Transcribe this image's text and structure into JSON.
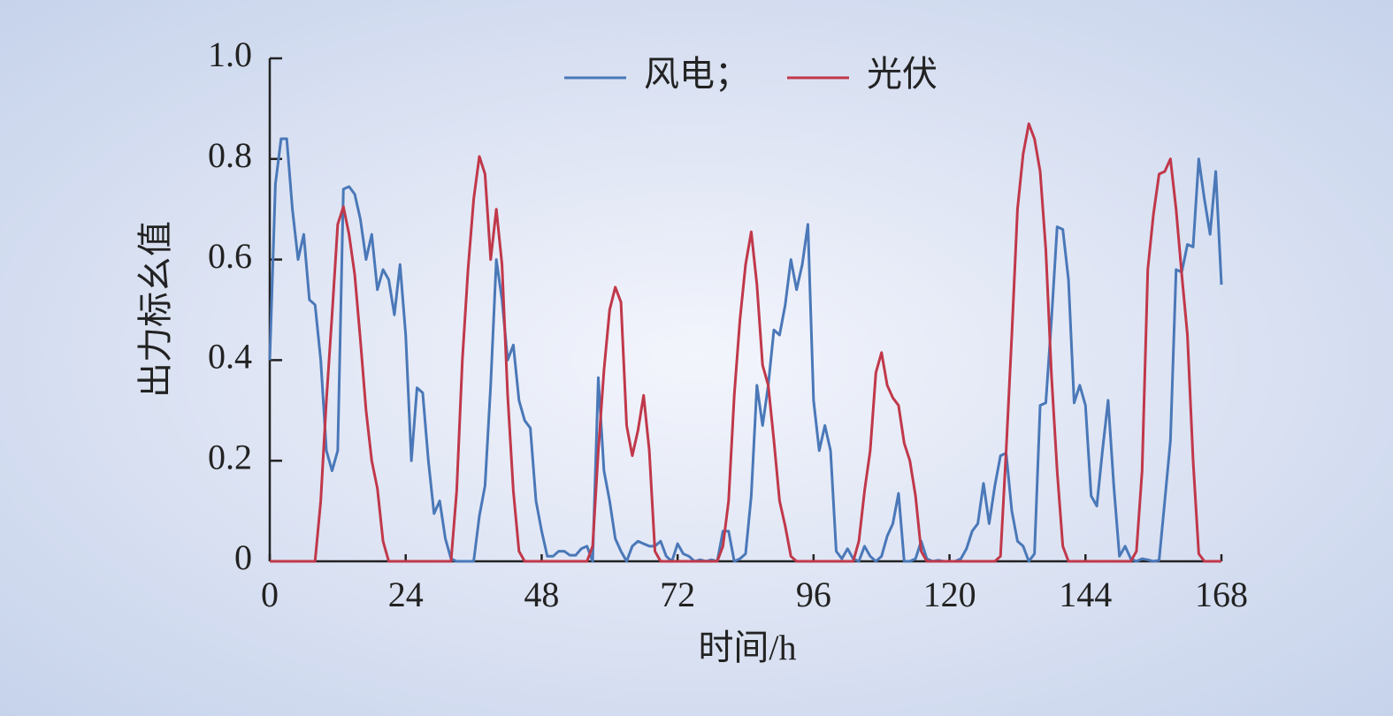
{
  "chart_data": {
    "type": "line",
    "x_label": "时间/h",
    "y_label": "出力标幺值",
    "x": [
      0,
      1,
      2,
      3,
      4,
      5,
      6,
      7,
      8,
      9,
      10,
      11,
      12,
      13,
      14,
      15,
      16,
      17,
      18,
      19,
      20,
      21,
      22,
      23,
      24,
      25,
      26,
      27,
      28,
      29,
      30,
      31,
      32,
      33,
      34,
      35,
      36,
      37,
      38,
      39,
      40,
      41,
      42,
      43,
      44,
      45,
      46,
      47,
      48,
      49,
      50,
      51,
      52,
      53,
      54,
      55,
      56,
      57,
      58,
      59,
      60,
      61,
      62,
      63,
      64,
      65,
      66,
      67,
      68,
      69,
      70,
      71,
      72,
      73,
      74,
      75,
      76,
      77,
      78,
      79,
      80,
      81,
      82,
      83,
      84,
      85,
      86,
      87,
      88,
      89,
      90,
      91,
      92,
      93,
      94,
      95,
      96,
      97,
      98,
      99,
      100,
      101,
      102,
      103,
      104,
      105,
      106,
      107,
      108,
      109,
      110,
      111,
      112,
      113,
      114,
      115,
      116,
      117,
      118,
      119,
      120,
      121,
      122,
      123,
      124,
      125,
      126,
      127,
      128,
      129,
      130,
      131,
      132,
      133,
      134,
      135,
      136,
      137,
      138,
      139,
      140,
      141,
      142,
      143,
      144,
      145,
      146,
      147,
      148,
      149,
      150,
      151,
      152,
      153,
      154,
      155,
      156,
      157,
      158,
      159,
      160,
      161,
      162,
      163,
      164,
      165,
      166,
      167,
      168
    ],
    "series": [
      {
        "name": "风电；",
        "color": "#4a78b8",
        "values": [
          0.4,
          0.75,
          0.84,
          0.84,
          0.7,
          0.6,
          0.65,
          0.52,
          0.51,
          0.4,
          0.22,
          0.18,
          0.22,
          0.74,
          0.745,
          0.73,
          0.68,
          0.6,
          0.65,
          0.54,
          0.58,
          0.56,
          0.49,
          0.59,
          0.45,
          0.2,
          0.345,
          0.335,
          0.2,
          0.095,
          0.12,
          0.045,
          0.005,
          0,
          0,
          0,
          0,
          0.09,
          0.15,
          0.35,
          0.6,
          0.52,
          0.4,
          0.43,
          0.32,
          0.28,
          0.265,
          0.12,
          0.06,
          0.01,
          0.01,
          0.02,
          0.02,
          0.012,
          0.012,
          0.025,
          0.03,
          0,
          0.365,
          0.18,
          0.12,
          0.045,
          0.02,
          0,
          0.03,
          0.04,
          0.035,
          0.03,
          0.03,
          0.04,
          0.01,
          0,
          0.035,
          0.015,
          0.01,
          0,
          0.003,
          0,
          0.003,
          0,
          0.06,
          0.06,
          0,
          0.005,
          0.015,
          0.13,
          0.35,
          0.27,
          0.35,
          0.46,
          0.45,
          0.51,
          0.6,
          0.54,
          0.59,
          0.67,
          0.32,
          0.22,
          0.27,
          0.22,
          0.02,
          0.005,
          0.025,
          0.005,
          0,
          0.03,
          0.01,
          0,
          0.01,
          0.05,
          0.075,
          0.135,
          0,
          0,
          0.005,
          0.04,
          0.005,
          0,
          0.002,
          0,
          0,
          0,
          0.005,
          0.025,
          0.06,
          0.075,
          0.155,
          0.075,
          0.15,
          0.21,
          0.215,
          0.1,
          0.04,
          0.03,
          0,
          0.015,
          0.31,
          0.315,
          0.48,
          0.665,
          0.66,
          0.56,
          0.315,
          0.35,
          0.31,
          0.13,
          0.11,
          0.22,
          0.32,
          0.15,
          0.01,
          0.03,
          0.005,
          0,
          0.005,
          0.003,
          0,
          0.002,
          0.12,
          0.24,
          0.58,
          0.575,
          0.63,
          0.625,
          0.8,
          0.72,
          0.65,
          0.775,
          0.55
        ]
      },
      {
        "name": "光伏",
        "color": "#c0384a",
        "values": [
          0,
          0,
          0,
          0,
          0,
          0,
          0,
          0,
          0,
          0.12,
          0.32,
          0.49,
          0.67,
          0.705,
          0.65,
          0.57,
          0.44,
          0.3,
          0.2,
          0.145,
          0.04,
          0,
          0,
          0,
          0,
          0,
          0,
          0,
          0,
          0,
          0,
          0,
          0,
          0.14,
          0.4,
          0.58,
          0.72,
          0.805,
          0.77,
          0.6,
          0.7,
          0.59,
          0.33,
          0.14,
          0.02,
          0,
          0,
          0,
          0,
          0,
          0,
          0,
          0,
          0,
          0,
          0,
          0,
          0.03,
          0.22,
          0.38,
          0.5,
          0.545,
          0.515,
          0.27,
          0.21,
          0.26,
          0.33,
          0.22,
          0.02,
          0,
          0,
          0,
          0,
          0,
          0,
          0,
          0,
          0,
          0,
          0,
          0.03,
          0.12,
          0.33,
          0.48,
          0.59,
          0.655,
          0.55,
          0.39,
          0.35,
          0.24,
          0.12,
          0.07,
          0.01,
          0,
          0,
          0,
          0,
          0,
          0,
          0,
          0,
          0,
          0,
          0,
          0.04,
          0.14,
          0.22,
          0.375,
          0.415,
          0.35,
          0.325,
          0.31,
          0.235,
          0.2,
          0.13,
          0.02,
          0,
          0,
          0,
          0,
          0,
          0,
          0,
          0,
          0,
          0,
          0,
          0,
          0,
          0.01,
          0.22,
          0.45,
          0.7,
          0.81,
          0.87,
          0.84,
          0.775,
          0.62,
          0.37,
          0.18,
          0.03,
          0,
          0,
          0,
          0,
          0,
          0,
          0,
          0,
          0,
          0,
          0,
          0,
          0.02,
          0.18,
          0.58,
          0.69,
          0.77,
          0.775,
          0.8,
          0.7,
          0.57,
          0.45,
          0.2,
          0.015,
          0,
          0,
          0,
          0
        ]
      }
    ],
    "xlim": [
      0,
      168
    ],
    "xticks": [
      0,
      24,
      48,
      72,
      96,
      120,
      144,
      168
    ],
    "ylim": [
      0,
      1
    ],
    "yticks": [
      0,
      0.2,
      0.4,
      0.6,
      0.8,
      {
        "value": 1,
        "label": "1.0"
      }
    ],
    "legend": "top"
  }
}
